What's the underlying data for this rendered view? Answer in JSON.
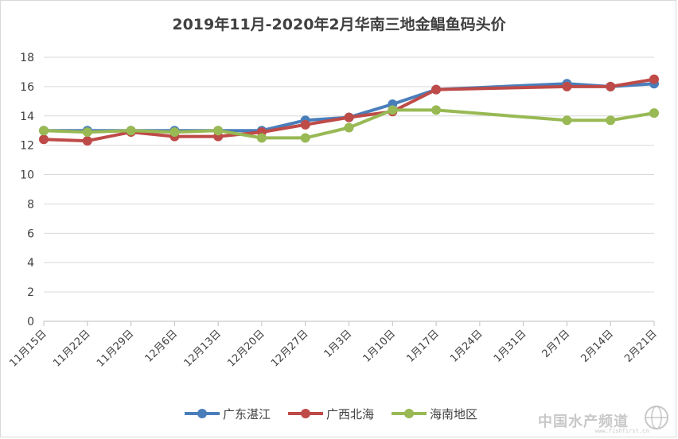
{
  "chart_data": {
    "type": "line",
    "title": "2019年11月-2020年2月华南三地金鲳鱼码头价",
    "categories": [
      "11月15日",
      "11月22日",
      "11月29日",
      "12月6日",
      "12月13日",
      "12月20日",
      "12月27日",
      "1月3日",
      "1月10日",
      "1月17日",
      "1月24日",
      "1月31日",
      "2月7日",
      "2月14日",
      "2月21日"
    ],
    "y_ticks": [
      "0",
      "2",
      "4",
      "6",
      "8",
      "10",
      "12",
      "14",
      "16",
      "18"
    ],
    "ylim": [
      0,
      18
    ],
    "grid": "horizontal",
    "legend": "bottom",
    "series": [
      {
        "name": "广东湛江",
        "color": "#4a7ebb",
        "values": [
          13.0,
          13.0,
          13.0,
          13.0,
          13.0,
          13.0,
          13.7,
          13.9,
          14.8,
          15.8,
          null,
          null,
          16.2,
          16.0,
          16.2
        ]
      },
      {
        "name": "广西北海",
        "color": "#be4b48",
        "values": [
          12.4,
          12.3,
          12.9,
          12.6,
          12.6,
          12.9,
          13.4,
          13.9,
          14.3,
          15.8,
          null,
          null,
          16.0,
          16.0,
          16.5
        ]
      },
      {
        "name": "海南地区",
        "color": "#98b954",
        "values": [
          13.0,
          12.9,
          13.0,
          12.9,
          13.0,
          12.5,
          12.5,
          13.2,
          14.4,
          14.4,
          null,
          null,
          13.7,
          13.7,
          14.2
        ]
      }
    ]
  },
  "watermark": {
    "text": "中国水产频道",
    "sub": "www.fishfirst.cn"
  }
}
